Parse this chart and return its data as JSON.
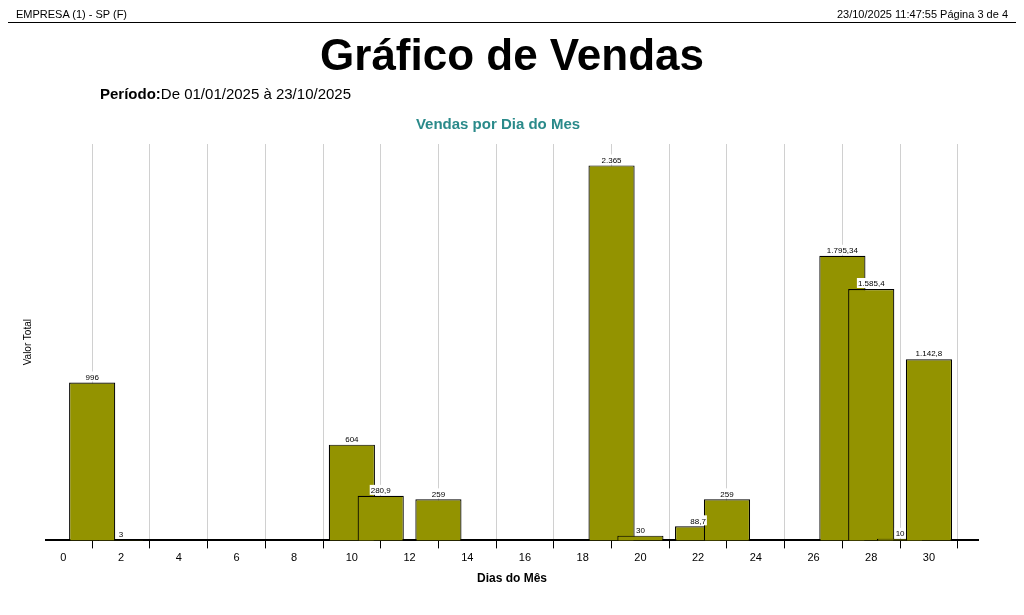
{
  "chart_data": {
    "type": "bar",
    "title": "Gráfico de Vendas",
    "subtitle": "Vendas por Dia do Mes",
    "annotations": [
      "EMPRESA (1) - SP (F)",
      "23/10/2025 11:47:55 Página 3 de 4",
      "Período:De 01/01/2025 à 23/10/2025"
    ],
    "xlabel": "Dias do Mês",
    "ylabel": "Valor Total",
    "x": [
      1,
      2,
      10,
      11,
      13,
      19,
      20,
      22,
      23,
      27,
      28,
      29,
      30
    ],
    "values": [
      996,
      3,
      604,
      280.9,
      259,
      2365,
      30,
      88.7,
      259,
      1795.34,
      1585.4,
      10,
      1142.8
    ],
    "value_labels": [
      "996",
      "3",
      "604",
      "280,9",
      "259",
      "2.365",
      "30",
      "88,7",
      "259",
      "1.795,34",
      "1.585,4",
      "10",
      "1.142,8"
    ],
    "color": "#939300",
    "xlim": [
      -0.6,
      31.7
    ],
    "xticks": [
      0,
      2,
      4,
      6,
      8,
      10,
      12,
      14,
      16,
      18,
      20,
      22,
      24,
      26,
      28,
      30
    ],
    "grid": "x",
    "tick_labels": "x",
    "legend": false
  }
}
